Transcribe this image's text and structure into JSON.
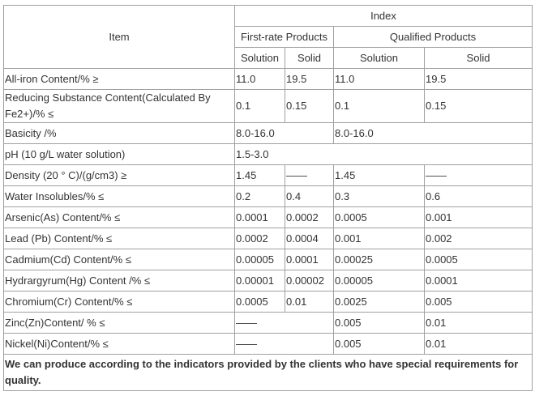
{
  "table": {
    "header": {
      "item": "Item",
      "index": "Index",
      "groups": [
        "First-rate Products",
        "Qualified Products"
      ],
      "subheads": [
        "Solution",
        "Solid",
        "Solution",
        "Solid"
      ]
    },
    "rows": [
      [
        "All-iron Content/% ≥",
        "11.0",
        "19.5",
        "11.0",
        "19.5"
      ],
      [
        "Reducing Substance Content(Calculated By Fe2+)/% ≤",
        "0.1",
        "0.15",
        "0.1",
        "0.15"
      ],
      [
        "Basicity /%",
        "8.0-16.0",
        "8.0-16.0"
      ],
      [
        "pH (10 g/L water solution)",
        "1.5-3.0"
      ],
      [
        "Density (20 ° C)/(g/cm3) ≥",
        "1.45",
        "——",
        "1.45",
        "——"
      ],
      [
        "Water Insolubles/% ≤",
        "0.2",
        "0.4",
        "0.3",
        "0.6"
      ],
      [
        "Arsenic(As) Content/% ≤",
        "0.0001",
        "0.0002",
        "0.0005",
        "0.001"
      ],
      [
        "Lead (Pb) Content/% ≤",
        "0.0002",
        "0.0004",
        "0.001",
        "0.002"
      ],
      [
        "Cadmium(Cd) Content/% ≤",
        "0.00005",
        "0.0001",
        "0.00025",
        "0.0005"
      ],
      [
        "Hydrargyrum(Hg) Content /% ≤",
        "0.00001",
        "0.00002",
        "0.00005",
        "0.0001"
      ],
      [
        "Chromium(Cr) Content/% ≤",
        "0.0005",
        "0.01",
        "0.0025",
        "0.005"
      ],
      [
        "Zinc(Zn)Content/ % ≤",
        "——",
        "0.005",
        "0.01"
      ],
      [
        "Nickel(Ni)Content/% ≤",
        "——",
        "0.005",
        "0.01"
      ]
    ],
    "footer": "We can produce according to the indicators provided by the clients who have special requirements for quality."
  }
}
